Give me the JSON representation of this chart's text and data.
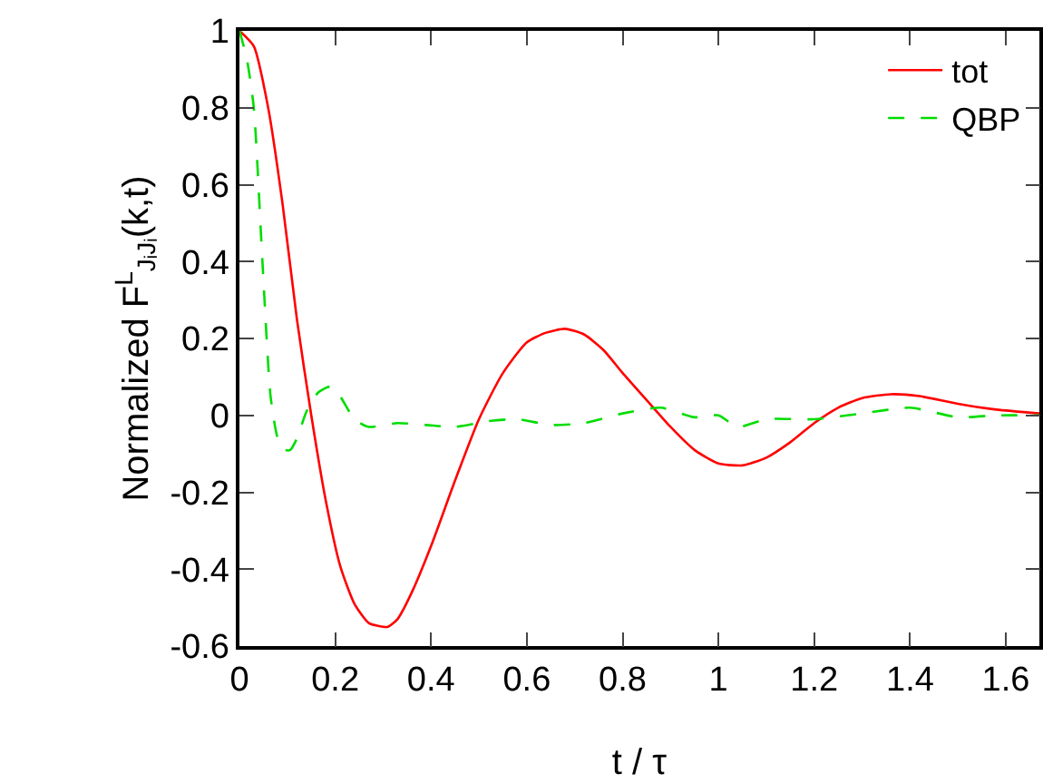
{
  "chart_data": {
    "type": "line",
    "xlabel": "t / τ",
    "ylabel": "Normalized F$^{L}$$_{JᵢJᵢ}$(k,t)",
    "xlim": [
      0,
      1.67
    ],
    "ylim": [
      -0.6,
      1
    ],
    "xticks": [
      0,
      0.2,
      0.4,
      0.6,
      0.8,
      1,
      1.2,
      1.4,
      1.6
    ],
    "yticks": [
      -0.6,
      -0.4,
      -0.2,
      0,
      0.2,
      0.4,
      0.6,
      0.8,
      1
    ],
    "grid": false,
    "legend": "top right",
    "marker": "none",
    "series": [
      {
        "name": "tot",
        "color": "#ff0000",
        "line_style": "solid",
        "x": [
          0,
          0.03,
          0.06,
          0.09,
          0.12,
          0.15,
          0.18,
          0.21,
          0.24,
          0.27,
          0.3,
          0.31,
          0.33,
          0.36,
          0.4,
          0.45,
          0.5,
          0.55,
          0.6,
          0.64,
          0.68,
          0.72,
          0.76,
          0.8,
          0.85,
          0.9,
          0.95,
          1.0,
          1.05,
          1.1,
          1.15,
          1.2,
          1.25,
          1.3,
          1.36,
          1.42,
          1.5,
          1.58,
          1.67
        ],
        "values": [
          1,
          0.96,
          0.8,
          0.55,
          0.25,
          0.0,
          -0.22,
          -0.39,
          -0.49,
          -0.54,
          -0.55,
          -0.55,
          -0.53,
          -0.46,
          -0.34,
          -0.17,
          -0.01,
          0.11,
          0.19,
          0.215,
          0.225,
          0.21,
          0.17,
          0.11,
          0.04,
          -0.03,
          -0.09,
          -0.125,
          -0.13,
          -0.11,
          -0.07,
          -0.02,
          0.02,
          0.045,
          0.055,
          0.05,
          0.03,
          0.015,
          0.005
        ]
      },
      {
        "name": "QBP",
        "color": "#00dd00",
        "line_style": "dashed",
        "x": [
          0,
          0.015,
          0.03,
          0.048,
          0.065,
          0.08,
          0.095,
          0.106,
          0.12,
          0.14,
          0.165,
          0.19,
          0.21,
          0.24,
          0.27,
          0.33,
          0.39,
          0.45,
          0.52,
          0.58,
          0.65,
          0.72,
          0.8,
          0.88,
          0.95,
          1.0,
          1.04,
          1.1,
          1.2,
          1.3,
          1.4,
          1.5,
          1.58,
          1.67
        ],
        "values": [
          1,
          0.93,
          0.8,
          0.4,
          0.05,
          -0.06,
          -0.09,
          -0.09,
          -0.06,
          0.01,
          0.06,
          0.075,
          0.05,
          -0.01,
          -0.03,
          -0.02,
          -0.025,
          -0.03,
          -0.015,
          -0.01,
          -0.025,
          -0.02,
          0.005,
          0.02,
          -0.005,
          0,
          -0.03,
          -0.01,
          -0.01,
          0.005,
          0.02,
          -0.005,
          0,
          0
        ]
      }
    ]
  }
}
